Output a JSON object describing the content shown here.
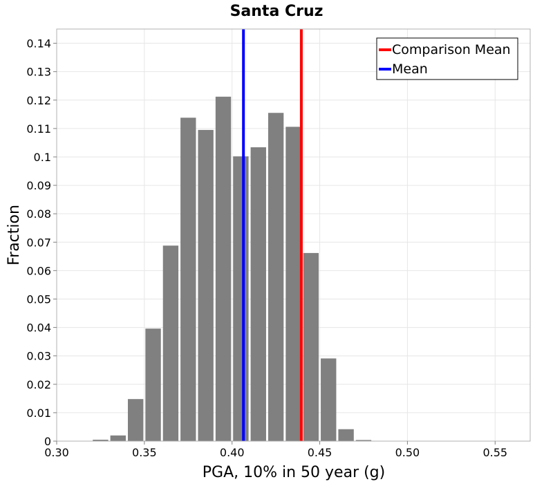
{
  "chart_data": {
    "type": "bar",
    "title": "Santa Cruz",
    "xlabel": "PGA, 10% in 50 year (g)",
    "ylabel": "Fraction",
    "xlim": [
      0.3,
      0.57
    ],
    "ylim": [
      0,
      0.145
    ],
    "bin_width": 0.01,
    "grid": true,
    "x_ticks": [
      0.3,
      0.35,
      0.4,
      0.45,
      0.5,
      0.55
    ],
    "x_tick_labels": [
      "0.30",
      "0.35",
      "0.40",
      "0.45",
      "0.50",
      "0.55"
    ],
    "y_ticks": [
      0,
      0.01,
      0.02,
      0.03,
      0.04,
      0.05,
      0.06,
      0.07,
      0.08,
      0.09,
      0.1,
      0.11,
      0.12,
      0.13,
      0.14
    ],
    "y_tick_labels": [
      "0",
      "0.01",
      "0.02",
      "0.03",
      "0.04",
      "0.05",
      "0.06",
      "0.07",
      "0.08",
      "0.09",
      "0.1",
      "0.11",
      "0.12",
      "0.13",
      "0.14"
    ],
    "bins": [
      {
        "center": 0.325,
        "value": 0.0005
      },
      {
        "center": 0.335,
        "value": 0.002
      },
      {
        "center": 0.345,
        "value": 0.0148
      },
      {
        "center": 0.355,
        "value": 0.0396
      },
      {
        "center": 0.365,
        "value": 0.0688
      },
      {
        "center": 0.375,
        "value": 0.1138
      },
      {
        "center": 0.385,
        "value": 0.1095
      },
      {
        "center": 0.395,
        "value": 0.1212
      },
      {
        "center": 0.405,
        "value": 0.1002
      },
      {
        "center": 0.415,
        "value": 0.1034
      },
      {
        "center": 0.425,
        "value": 0.1155
      },
      {
        "center": 0.435,
        "value": 0.1106
      },
      {
        "center": 0.445,
        "value": 0.0662
      },
      {
        "center": 0.455,
        "value": 0.0291
      },
      {
        "center": 0.465,
        "value": 0.0042
      },
      {
        "center": 0.475,
        "value": 0.0004
      }
    ],
    "lines": [
      {
        "name": "Comparison Mean",
        "x": 0.4395,
        "color": "#ff0000"
      },
      {
        "name": "Mean",
        "x": 0.4065,
        "color": "#0000ff"
      }
    ],
    "legend": {
      "position": "top-right",
      "entries": [
        {
          "label": "Comparison Mean",
          "color": "#ff0000"
        },
        {
          "label": "Mean",
          "color": "#0000ff"
        }
      ]
    }
  }
}
